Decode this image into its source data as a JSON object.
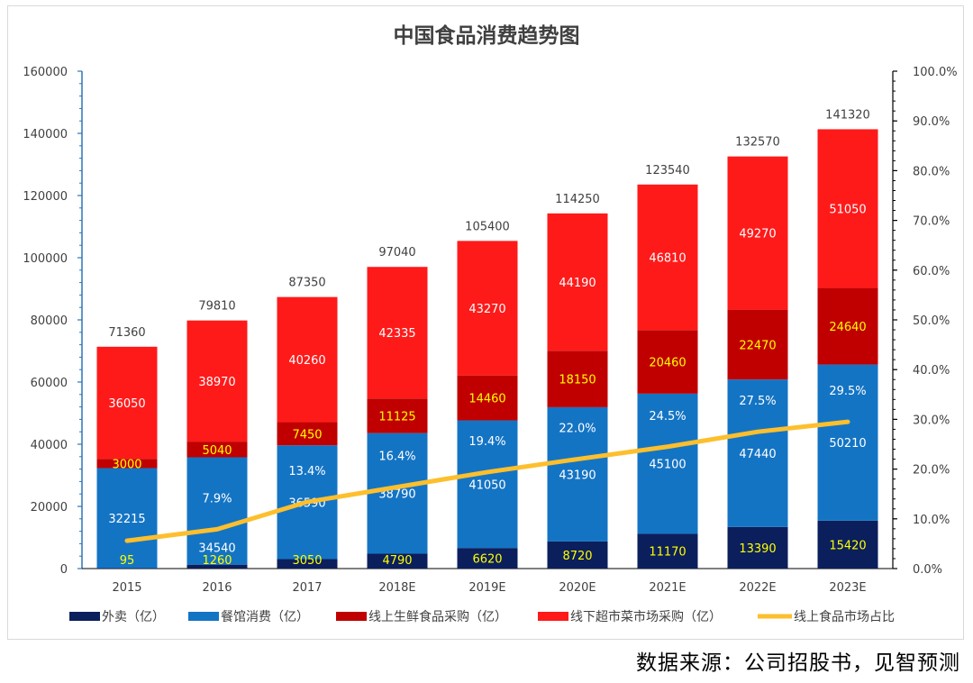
{
  "chart_data": {
    "type": "bar",
    "stacked": true,
    "title": "中国食品消费趋势图",
    "categories": [
      "2015",
      "2016",
      "2017",
      "2018E",
      "2019E",
      "2020E",
      "2021E",
      "2022E",
      "2023E"
    ],
    "series": [
      {
        "name": "外卖（亿）",
        "type": "bar",
        "color": "#0b1f5c",
        "label_color": "#ffff00",
        "values": [
          95,
          1260,
          3050,
          4790,
          6620,
          8720,
          11170,
          13390,
          15420
        ]
      },
      {
        "name": "餐馆消费（亿）",
        "type": "bar",
        "color": "#1474c4",
        "label_color": "#ffffff",
        "values": [
          32215,
          34540,
          36590,
          38790,
          41050,
          43190,
          45100,
          47440,
          50210
        ]
      },
      {
        "name": "线上生鲜食品采购（亿）",
        "type": "bar",
        "color": "#c00000",
        "label_color": "#ffff00",
        "values": [
          3000,
          5040,
          7450,
          11125,
          14460,
          18150,
          20460,
          22470,
          24640
        ]
      },
      {
        "name": "线下超市菜市场采购（亿）",
        "type": "bar",
        "color": "#ff1a1a",
        "label_color": "#ffffff",
        "values": [
          36050,
          38970,
          40260,
          42335,
          43270,
          44190,
          46810,
          49270,
          51050
        ]
      },
      {
        "name": "线上食品市场占比",
        "type": "line",
        "axis": "right",
        "color": "#fdbf2d",
        "values": [
          5.6,
          7.9,
          13.4,
          16.4,
          19.4,
          22.0,
          24.5,
          27.5,
          29.5
        ],
        "labels": [
          "",
          "7.9%",
          "13.4%",
          "16.4%",
          "19.4%",
          "22.0%",
          "24.5%",
          "27.5%",
          "29.5%"
        ]
      }
    ],
    "totals": [
      71360,
      79810,
      87350,
      97040,
      105400,
      114250,
      123540,
      132570,
      141320
    ],
    "ylim": [
      0,
      160000
    ],
    "yticks": [
      "0",
      "20000",
      "40000",
      "60000",
      "80000",
      "100000",
      "120000",
      "140000",
      "160000"
    ],
    "y2lim": [
      0,
      100
    ],
    "y2ticks": [
      "0.0%",
      "10.0%",
      "20.0%",
      "30.0%",
      "40.0%",
      "50.0%",
      "60.0%",
      "70.0%",
      "80.0%",
      "90.0%",
      "100.0%"
    ],
    "legend_position": "bottom",
    "grid": false
  },
  "source_note": "数据来源：公司招股书，见智预测"
}
